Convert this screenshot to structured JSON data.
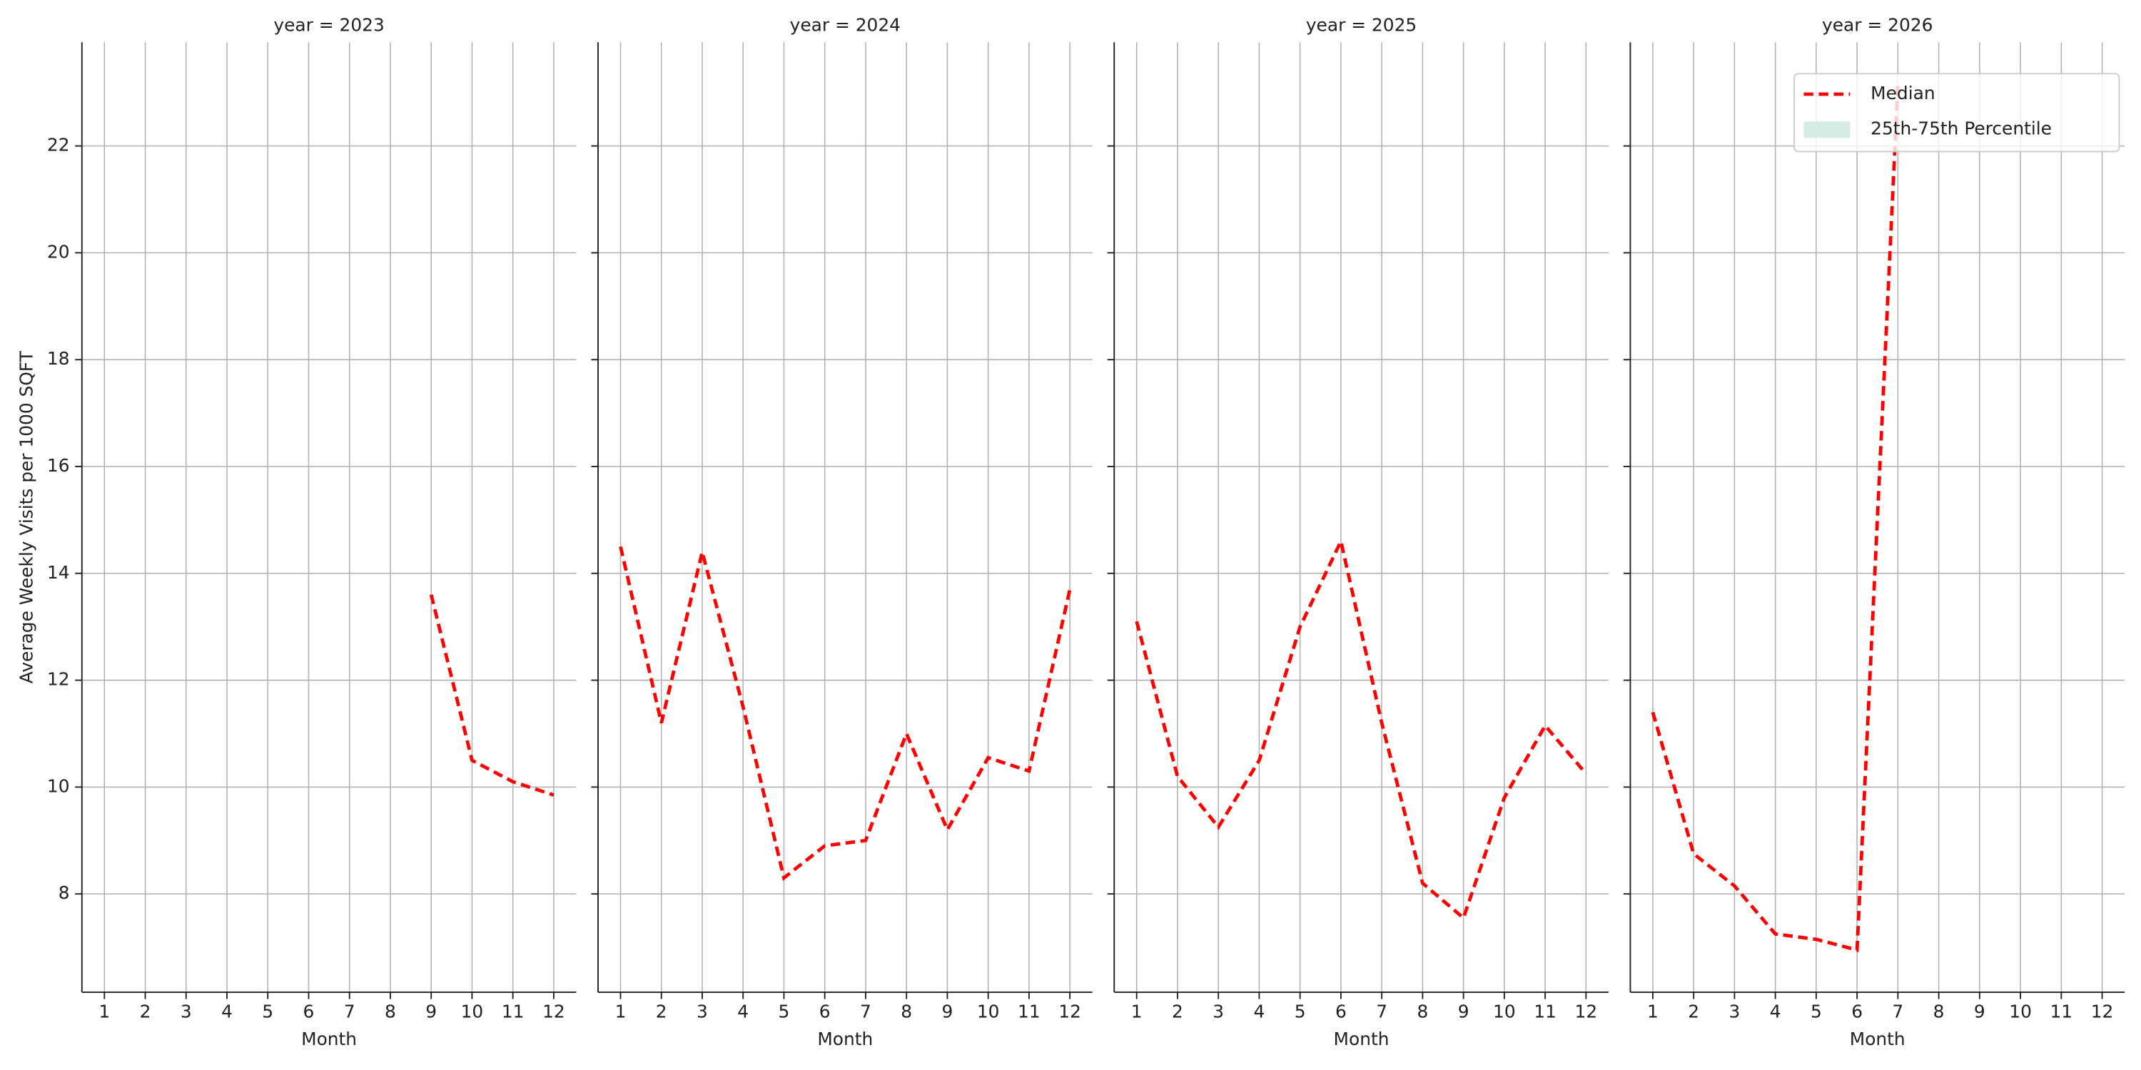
{
  "chart_data": [
    {
      "type": "line",
      "title": "year = 2023",
      "xlabel": "Month",
      "ylabel": "Average Weekly Visits per 1000 SQFT",
      "x": [
        1,
        2,
        3,
        4,
        5,
        6,
        7,
        8,
        9,
        10,
        11,
        12
      ],
      "xlim": [
        0.45,
        12.55
      ],
      "xticks": [
        1,
        2,
        3,
        4,
        5,
        6,
        7,
        8,
        9,
        10,
        11,
        12
      ],
      "ylim": [
        6.16,
        23.94
      ],
      "yticks": [
        8,
        10,
        12,
        14,
        16,
        18,
        20,
        22
      ],
      "grid": true,
      "series": [
        {
          "name": "Median",
          "color": "#ff0000",
          "linestyle": "dashed",
          "values": [
            null,
            null,
            null,
            null,
            null,
            null,
            null,
            null,
            13.6,
            10.5,
            10.1,
            9.85
          ]
        }
      ]
    },
    {
      "type": "line",
      "title": "year = 2024",
      "xlabel": "Month",
      "x": [
        1,
        2,
        3,
        4,
        5,
        6,
        7,
        8,
        9,
        10,
        11,
        12
      ],
      "xlim": [
        0.45,
        12.55
      ],
      "xticks": [
        1,
        2,
        3,
        4,
        5,
        6,
        7,
        8,
        9,
        10,
        11,
        12
      ],
      "ylim": [
        6.16,
        23.94
      ],
      "yticks": [
        8,
        10,
        12,
        14,
        16,
        18,
        20,
        22
      ],
      "grid": true,
      "series": [
        {
          "name": "Median",
          "color": "#ff0000",
          "linestyle": "dashed",
          "values": [
            14.5,
            11.2,
            14.4,
            11.5,
            8.3,
            8.9,
            9.0,
            11.0,
            9.2,
            10.55,
            10.3,
            13.7
          ]
        }
      ]
    },
    {
      "type": "line",
      "title": "year = 2025",
      "xlabel": "Month",
      "x": [
        1,
        2,
        3,
        4,
        5,
        6,
        7,
        8,
        9,
        10,
        11,
        12
      ],
      "xlim": [
        0.45,
        12.55
      ],
      "xticks": [
        1,
        2,
        3,
        4,
        5,
        6,
        7,
        8,
        9,
        10,
        11,
        12
      ],
      "ylim": [
        6.16,
        23.94
      ],
      "yticks": [
        8,
        10,
        12,
        14,
        16,
        18,
        20,
        22
      ],
      "grid": true,
      "series": [
        {
          "name": "Median",
          "color": "#ff0000",
          "linestyle": "dashed",
          "values": [
            13.1,
            10.2,
            9.25,
            10.5,
            13.0,
            14.6,
            11.2,
            8.2,
            7.55,
            9.8,
            11.15,
            10.25
          ]
        }
      ]
    },
    {
      "type": "line",
      "title": "year = 2026",
      "xlabel": "Month",
      "x": [
        1,
        2,
        3,
        4,
        5,
        6,
        7,
        8,
        9,
        10,
        11,
        12
      ],
      "xlim": [
        0.45,
        12.55
      ],
      "xticks": [
        1,
        2,
        3,
        4,
        5,
        6,
        7,
        8,
        9,
        10,
        11,
        12
      ],
      "ylim": [
        6.16,
        23.94
      ],
      "yticks": [
        8,
        10,
        12,
        14,
        16,
        18,
        20,
        22
      ],
      "grid": true,
      "series": [
        {
          "name": "Median",
          "color": "#ff0000",
          "linestyle": "dashed",
          "values": [
            11.4,
            8.75,
            8.15,
            7.25,
            7.15,
            6.95,
            23.15,
            null,
            null,
            null,
            null,
            null
          ]
        }
      ],
      "legend": {
        "loc": "upper right",
        "entries": [
          {
            "name": "Median",
            "color": "#ff0000",
            "linestyle": "dashed"
          },
          {
            "name": "25th-75th Percentile",
            "color": "#d4ede4",
            "linestyle": "patch"
          }
        ]
      }
    }
  ]
}
